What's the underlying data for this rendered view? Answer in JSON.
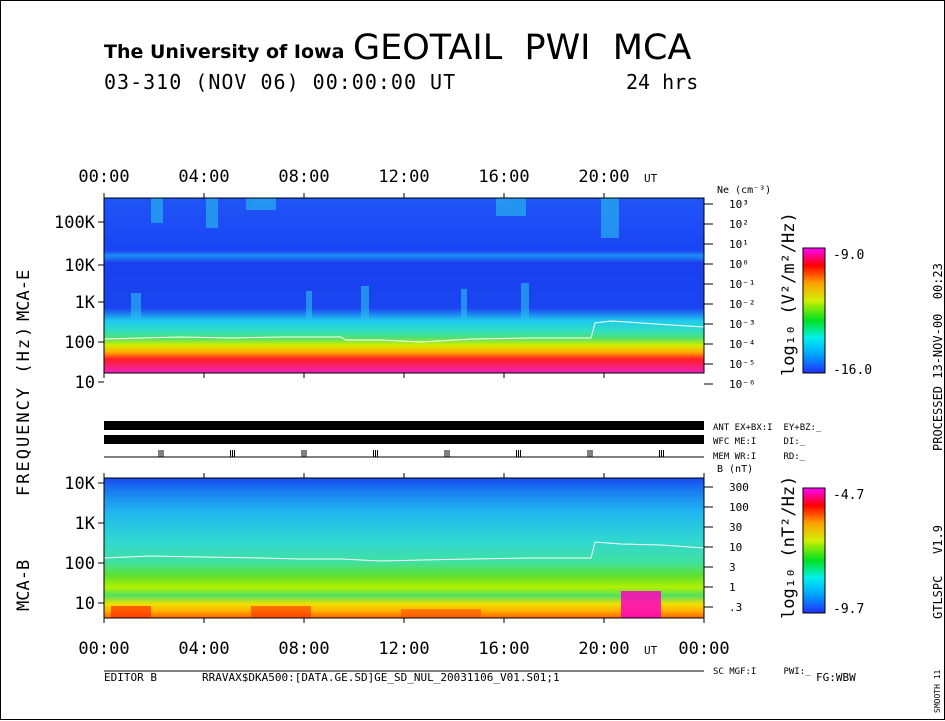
{
  "header": {
    "institution": "The University of Iowa",
    "title": "GEOTAIL  PWI  MCA",
    "date_line": "03-310 (NOV 06) 00:00:00 UT",
    "duration": "24 hrs"
  },
  "side_labels": {
    "processed": "PROCESSED 13-NOV-00  00:23",
    "software": "GTLSPC   V1.9",
    "smooth": "SMOOTH 11",
    "frequency_axis": "FREQUENCY (Hz)",
    "panel_e": "MCA-E",
    "panel_b": "MCA-B"
  },
  "footer": {
    "editor": "EDITOR B",
    "path": "RRAVAX$DKA500:[DATA.GE.SD]GE_SD_NUL_20031106_V01.S01;1",
    "fg": "FG:WBW"
  },
  "status_rows": [
    {
      "label": "ANT EX+BX:I  EY+BZ:_"
    },
    {
      "label": "WFC ME:I     DI:_"
    },
    {
      "label": "MEM WR:I     RD:_"
    },
    {
      "label": "SC MGF:I     PWI:_"
    }
  ],
  "chart_data": [
    {
      "type": "heatmap",
      "title": "MCA-E",
      "x_ticks": [
        "00:00",
        "04:00",
        "08:00",
        "12:00",
        "16:00",
        "20:00"
      ],
      "x_unit": "UT",
      "x_range_hours": [
        0,
        24
      ],
      "y_label": "FREQUENCY (Hz)",
      "y_ticks": [
        "100K",
        "10K",
        "1K",
        "100",
        "10"
      ],
      "y_tick_values": [
        100000,
        10000,
        1000,
        100,
        10
      ],
      "right_axis_label": "Ne (cm⁻³)",
      "right_ticks": [
        "10³",
        "10²",
        "10¹",
        "10⁰",
        "10⁻¹",
        "10⁻²",
        "10⁻³",
        "10⁻⁴",
        "10⁻⁵",
        "10⁻⁶"
      ],
      "colorbar": {
        "label": "log₁₀ (V²/m²/Hz)",
        "max": "-9.0",
        "min": "-16.0",
        "max_value": -9.0,
        "min_value": -16.0
      }
    },
    {
      "type": "heatmap",
      "title": "MCA-B",
      "x_ticks": [
        "00:00",
        "04:00",
        "08:00",
        "12:00",
        "16:00",
        "20:00",
        "00:00"
      ],
      "x_unit": "UT",
      "x_range_hours": [
        0,
        24
      ],
      "y_ticks": [
        "10K",
        "1K",
        "100",
        "10"
      ],
      "y_tick_values": [
        10000,
        1000,
        100,
        10
      ],
      "right_axis_label": "B (nT)",
      "right_ticks": [
        "300",
        "100",
        "30",
        "10",
        "3",
        "1",
        ".3"
      ],
      "colorbar": {
        "label": "log₁₀ (nT²/Hz)",
        "max": "-4.7",
        "min": "-9.7",
        "max_value": -4.7,
        "min_value": -9.7
      }
    }
  ]
}
